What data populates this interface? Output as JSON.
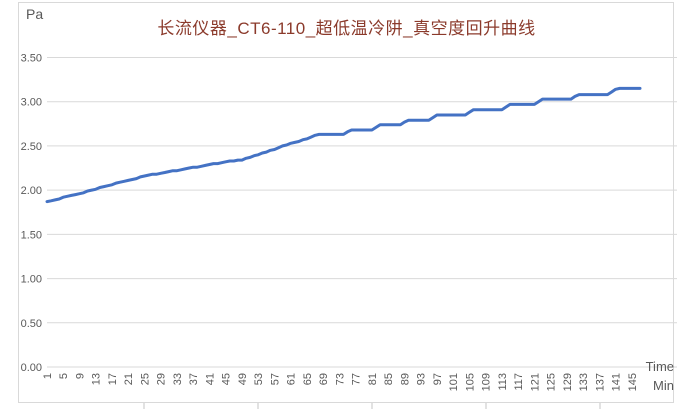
{
  "title": "长流仪器_CT6-110_超低温冷阱_真空度回升曲线",
  "axes": {
    "y_unit": "Pa",
    "x_title_line1": "Time",
    "x_title_line2": "Min"
  },
  "colors": {
    "line": "#4472C4",
    "title_text": "#8B3A2B",
    "axis_text": "#595959",
    "gridline": "#D9D9D9",
    "frame_border": "#D9D9D9",
    "frame_tick": "#C5C5C5"
  },
  "chart_data": {
    "type": "line",
    "title": "长流仪器_CT6-110_超低温冷阱_真空度回升曲线",
    "xlabel": "Time Min",
    "ylabel": "Pa",
    "ylim": [
      0,
      3.5
    ],
    "grid": "horizontal-only",
    "legend": "none",
    "line_color": "#4472C4",
    "y_ticks": [
      0,
      0.5,
      1,
      1.5,
      2,
      2.5,
      3,
      3.5
    ],
    "y_tick_labels": [
      "0.00",
      "0.50",
      "1.00",
      "1.50",
      "2.00",
      "2.50",
      "3.00",
      "3.50"
    ],
    "x_tick_labels": [
      "1",
      "5",
      "9",
      "13",
      "17",
      "21",
      "25",
      "29",
      "33",
      "37",
      "41",
      "45",
      "49",
      "53",
      "57",
      "61",
      "65",
      "69",
      "73",
      "77",
      "81",
      "85",
      "89",
      "93",
      "97",
      "101",
      "105",
      "109",
      "113",
      "117",
      "121",
      "125",
      "129",
      "133",
      "137",
      "141",
      "145"
    ],
    "x": [
      1,
      2,
      3,
      4,
      5,
      6,
      7,
      8,
      9,
      10,
      11,
      12,
      13,
      14,
      15,
      16,
      17,
      18,
      19,
      20,
      21,
      22,
      23,
      24,
      25,
      26,
      27,
      28,
      29,
      30,
      31,
      32,
      33,
      34,
      35,
      36,
      37,
      38,
      39,
      40,
      41,
      42,
      43,
      44,
      45,
      46,
      47,
      48,
      49,
      50,
      51,
      52,
      53,
      54,
      55,
      56,
      57,
      58,
      59,
      60,
      61,
      62,
      63,
      64,
      65,
      66,
      67,
      68,
      69,
      70,
      71,
      72,
      73,
      74,
      75,
      76,
      77,
      78,
      79,
      80,
      81,
      82,
      83,
      84,
      85,
      86,
      87,
      88,
      89,
      90,
      91,
      92,
      93,
      94,
      95,
      96,
      97,
      98,
      99,
      100,
      101,
      102,
      103,
      104,
      105,
      106,
      107,
      108,
      109,
      110,
      111,
      112,
      113,
      114,
      115,
      116,
      117,
      118,
      119,
      120,
      121,
      122,
      123,
      124,
      125,
      126,
      127,
      128,
      129,
      130,
      131,
      132,
      133,
      134,
      135,
      136,
      137,
      138,
      139,
      140,
      141,
      142,
      143,
      144,
      145,
      146,
      147
    ],
    "values": [
      1.87,
      1.88,
      1.89,
      1.9,
      1.92,
      1.93,
      1.94,
      1.95,
      1.96,
      1.97,
      1.99,
      2.0,
      2.01,
      2.03,
      2.04,
      2.05,
      2.06,
      2.08,
      2.09,
      2.1,
      2.11,
      2.12,
      2.13,
      2.15,
      2.16,
      2.17,
      2.18,
      2.18,
      2.19,
      2.2,
      2.21,
      2.22,
      2.22,
      2.23,
      2.24,
      2.25,
      2.26,
      2.26,
      2.27,
      2.28,
      2.29,
      2.3,
      2.3,
      2.31,
      2.32,
      2.33,
      2.33,
      2.34,
      2.34,
      2.36,
      2.37,
      2.39,
      2.4,
      2.42,
      2.43,
      2.45,
      2.46,
      2.48,
      2.5,
      2.51,
      2.53,
      2.54,
      2.55,
      2.57,
      2.58,
      2.6,
      2.62,
      2.63,
      2.63,
      2.63,
      2.63,
      2.63,
      2.63,
      2.63,
      2.66,
      2.68,
      2.68,
      2.68,
      2.68,
      2.68,
      2.68,
      2.71,
      2.74,
      2.74,
      2.74,
      2.74,
      2.74,
      2.74,
      2.77,
      2.79,
      2.79,
      2.79,
      2.79,
      2.79,
      2.79,
      2.82,
      2.85,
      2.85,
      2.85,
      2.85,
      2.85,
      2.85,
      2.85,
      2.85,
      2.88,
      2.91,
      2.91,
      2.91,
      2.91,
      2.91,
      2.91,
      2.91,
      2.91,
      2.94,
      2.97,
      2.97,
      2.97,
      2.97,
      2.97,
      2.97,
      2.97,
      3.0,
      3.03,
      3.03,
      3.03,
      3.03,
      3.03,
      3.03,
      3.03,
      3.03,
      3.06,
      3.08,
      3.08,
      3.08,
      3.08,
      3.08,
      3.08,
      3.08,
      3.08,
      3.11,
      3.14,
      3.15,
      3.15,
      3.15,
      3.15,
      3.15,
      3.15
    ]
  }
}
